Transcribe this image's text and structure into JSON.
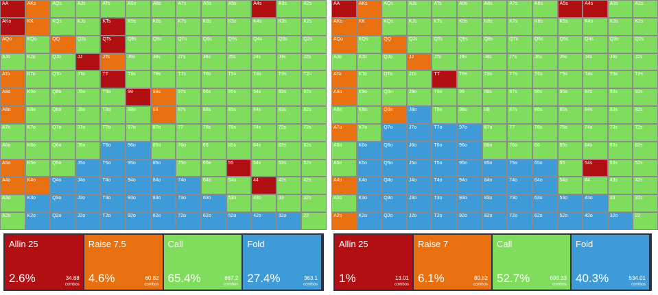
{
  "hands": [
    [
      "AA",
      "AKs",
      "AQs",
      "AJs",
      "ATs",
      "A9s",
      "A8s",
      "A7s",
      "A6s",
      "A5s",
      "A4s",
      "A3s",
      "A2s"
    ],
    [
      "AKo",
      "KK",
      "KQs",
      "KJs",
      "KTs",
      "K9s",
      "K8s",
      "K7s",
      "K6s",
      "K5s",
      "K4s",
      "K3s",
      "K2s"
    ],
    [
      "AQo",
      "KQo",
      "QQ",
      "QJs",
      "QTs",
      "Q9s",
      "Q8s",
      "Q7s",
      "Q6s",
      "Q5s",
      "Q4s",
      "Q3s",
      "Q2s"
    ],
    [
      "AJo",
      "KJo",
      "QJo",
      "JJ",
      "JTs",
      "J9s",
      "J8s",
      "J7s",
      "J6s",
      "J5s",
      "J4s",
      "J3s",
      "J2s"
    ],
    [
      "ATo",
      "KTo",
      "QTo",
      "JTo",
      "TT",
      "T9s",
      "T8s",
      "T7s",
      "T6s",
      "T5s",
      "T4s",
      "T3s",
      "T2s"
    ],
    [
      "A9o",
      "K9o",
      "Q9o",
      "J9o",
      "T9o",
      "99",
      "98s",
      "97s",
      "96s",
      "95s",
      "94s",
      "93s",
      "92s"
    ],
    [
      "A8o",
      "K8o",
      "Q8o",
      "J8o",
      "T8o",
      "98o",
      "88",
      "87s",
      "86s",
      "85s",
      "84s",
      "83s",
      "82s"
    ],
    [
      "A7o",
      "K7o",
      "Q7o",
      "J7o",
      "T7o",
      "97o",
      "87o",
      "77",
      "76s",
      "75s",
      "74s",
      "73s",
      "72s"
    ],
    [
      "A6o",
      "K6o",
      "Q6o",
      "J6o",
      "T6o",
      "96o",
      "86o",
      "76o",
      "66",
      "65s",
      "64s",
      "63s",
      "62s"
    ],
    [
      "A5o",
      "K5o",
      "Q5o",
      "J5o",
      "T5o",
      "95o",
      "85o",
      "75o",
      "65o",
      "55",
      "54s",
      "53s",
      "52s"
    ],
    [
      "A4o",
      "K4o",
      "Q4o",
      "J4o",
      "T4o",
      "94o",
      "84o",
      "74o",
      "64o",
      "54o",
      "44",
      "43s",
      "42s"
    ],
    [
      "A3o",
      "K3o",
      "Q3o",
      "J3o",
      "T3o",
      "93o",
      "83o",
      "73o",
      "63o",
      "53o",
      "43o",
      "33",
      "32s"
    ],
    [
      "A2o",
      "K2o",
      "Q2o",
      "J2o",
      "T2o",
      "92o",
      "82o",
      "72o",
      "62o",
      "52o",
      "42o",
      "32o",
      "22"
    ]
  ],
  "combos_label": "combos",
  "panels": [
    {
      "legend": [
        {
          "name": "Allin 25",
          "percent": "2.6%",
          "combos": "34.88"
        },
        {
          "name": "Raise 7.5",
          "percent": "4.6%",
          "combos": "60.82"
        },
        {
          "name": "Call",
          "percent": "65.4%",
          "combos": "867.2"
        },
        {
          "name": "Fold",
          "percent": "27.4%",
          "combos": "363.1"
        }
      ]
    },
    {
      "legend": [
        {
          "name": "Allin 25",
          "percent": "1%",
          "combos": "13.01"
        },
        {
          "name": "Raise 7",
          "percent": "6.1%",
          "combos": "80.82"
        },
        {
          "name": "Call",
          "percent": "52.7%",
          "combos": "698.33"
        },
        {
          "name": "Fold",
          "percent": "40.3%",
          "combos": "534.01"
        }
      ]
    }
  ]
}
